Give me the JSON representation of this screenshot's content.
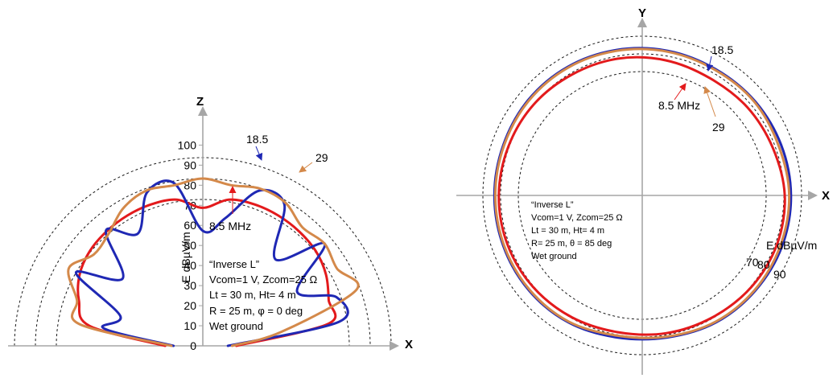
{
  "chart_data": [
    {
      "type": "polar-line",
      "plane": "vertical (XZ)",
      "axes": {
        "vertical": "Z",
        "horizontal": "X"
      },
      "ylabel": "E dBµV/m",
      "yticks": [
        "0",
        "10",
        "20",
        "30",
        "40",
        "50",
        "60",
        "70",
        "80",
        "90",
        "100"
      ],
      "ylim": [
        0,
        100
      ],
      "reference_circles": [
        70,
        80,
        90
      ],
      "series": [
        {
          "name": "8.5 MHz",
          "color": "#e31a1c",
          "angles_deg": [
            0,
            10,
            20,
            30,
            40,
            50,
            60,
            70,
            80,
            90,
            100,
            110,
            120,
            130,
            140,
            150,
            160,
            170,
            180
          ],
          "values": [
            16,
            61,
            64,
            68,
            70.5,
            71.5,
            72,
            72,
            71,
            66,
            71,
            72,
            72,
            71.5,
            70.5,
            68,
            63,
            55,
            18
          ]
        },
        {
          "name": "18.5",
          "color": "#1f28b4",
          "angles_deg": [
            0,
            10,
            20,
            30,
            40,
            50,
            60,
            70,
            80,
            90,
            100,
            110,
            120,
            130,
            140,
            150,
            160,
            170,
            180
          ],
          "values": [
            12,
            66,
            68,
            52,
            76,
            54,
            78,
            79,
            62,
            55,
            79,
            78,
            62,
            72,
            50,
            70,
            42,
            48,
            14
          ]
        },
        {
          "name": "29",
          "color": "#d4894a",
          "angles_deg": [
            0,
            10,
            20,
            30,
            40,
            50,
            60,
            70,
            80,
            90,
            100,
            110,
            120,
            130,
            140,
            150,
            160,
            170,
            180
          ],
          "values": [
            14,
            38,
            78,
            74,
            76,
            74,
            79,
            80,
            78,
            80,
            78,
            79,
            76,
            70,
            68,
            74,
            64,
            60,
            15
          ]
        }
      ],
      "annotations": [
        "“Inverse L”",
        "Vcom=1 V,  Zcom=25 Ω",
        "Lt = 30 m, Ht= 4 m",
        "R = 25 m, φ = 0 deg",
        "Wet ground"
      ]
    },
    {
      "type": "polar-line",
      "plane": "horizontal (XY)",
      "axes": {
        "vertical": "Y",
        "horizontal": "X"
      },
      "rlabel": "E dBµV/m",
      "reference_circles": [
        70,
        80,
        90
      ],
      "series": [
        {
          "name": "8.5 MHz",
          "color": "#e31a1c",
          "angles_deg": [
            0,
            20,
            40,
            60,
            80,
            100,
            120,
            140,
            160,
            180,
            200,
            220,
            240,
            260,
            280,
            300,
            320,
            340
          ],
          "values": [
            80.5,
            78.5,
            77.5,
            76.5,
            77.5,
            78.5,
            79,
            80,
            80.5,
            81,
            81,
            80.5,
            79.5,
            78.5,
            79,
            79.5,
            80.5,
            81
          ]
        },
        {
          "name": "18.5",
          "color": "#1f28b4",
          "angles_deg": [
            0,
            20,
            40,
            60,
            80,
            100,
            120,
            140,
            160,
            180,
            200,
            220,
            240,
            260,
            280,
            300,
            320,
            340
          ],
          "values": [
            84,
            83.5,
            83,
            82.5,
            83,
            83.5,
            84,
            84,
            83.5,
            83.5,
            83.5,
            83.5,
            83,
            81.5,
            81.5,
            83,
            83.5,
            84
          ]
        },
        {
          "name": "29",
          "color": "#d4894a",
          "angles_deg": [
            0,
            20,
            40,
            60,
            80,
            100,
            120,
            140,
            160,
            180,
            200,
            220,
            240,
            260,
            280,
            300,
            320,
            340
          ],
          "values": [
            83,
            82,
            82.5,
            82,
            82.5,
            83,
            83.5,
            83.5,
            83,
            83,
            83,
            83,
            82.5,
            80.5,
            81,
            82.5,
            83,
            83
          ]
        }
      ],
      "circle_labels": [
        "70",
        "80",
        "90"
      ],
      "annotations": [
        "“Inverse L”",
        "Vcom=1 V,  Zcom=25 Ω",
        "Lt = 30 m, Ht= 4 m",
        "R= 25 m, θ = 85 deg",
        "Wet ground"
      ]
    }
  ]
}
